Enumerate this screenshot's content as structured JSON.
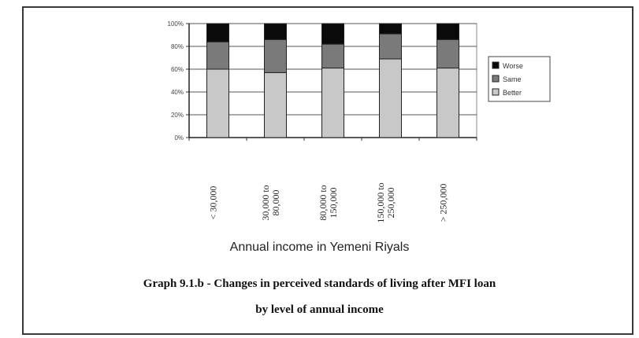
{
  "chart_data": {
    "type": "bar",
    "stacked": true,
    "percent": true,
    "categories": [
      "< 30,000",
      "30,000 to 80,000",
      "80,000 to 150,000",
      "150,000 to 250,000",
      "> 250,000"
    ],
    "category_lines": [
      [
        "< 30,000"
      ],
      [
        "30,000 to",
        "80,000"
      ],
      [
        "80,000 to",
        "150,000"
      ],
      [
        "150,000 to",
        "250,000"
      ],
      [
        "> 250,000"
      ]
    ],
    "series": [
      {
        "name": "Better",
        "color": "#c8c8c8",
        "values": [
          60,
          57,
          61,
          69,
          61
        ]
      },
      {
        "name": "Same",
        "color": "#7a7a7a",
        "values": [
          24,
          29,
          21,
          22,
          25
        ]
      },
      {
        "name": "Worse",
        "color": "#0a0a0a",
        "values": [
          16,
          14,
          18,
          9,
          14
        ]
      }
    ],
    "ylim": [
      0,
      100
    ],
    "yticks": [
      "0%",
      "20%",
      "40%",
      "60%",
      "80%",
      "100%"
    ],
    "grid": true,
    "legend": "right",
    "xlabel": "Annual income in Yemeni Riyals"
  },
  "caption": {
    "line1": "Graph 9.1.b - Changes in perceived standards of living after MFI loan",
    "line2": "by level of annual income"
  }
}
